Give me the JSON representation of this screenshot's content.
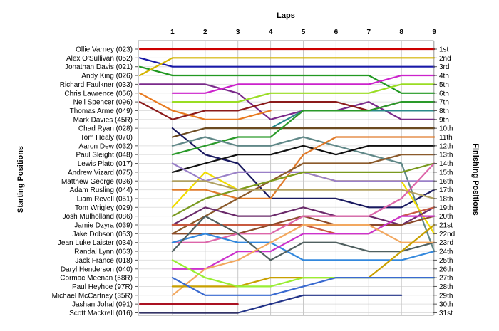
{
  "chart_data": {
    "type": "line",
    "title": "Laps",
    "ylabel": "Starting Positions",
    "y2label": "Finishing Positions",
    "x": [
      0,
      1,
      2,
      3,
      4,
      5,
      6,
      7,
      8,
      9
    ],
    "x_tick_labels": [
      "1",
      "2",
      "3",
      "4",
      "5",
      "6",
      "7",
      "8",
      "9"
    ],
    "ylim": [
      1,
      31
    ],
    "grid": true,
    "start_labels": [
      "Ollie Varney (023)",
      "Alex O'Sullivan (052)",
      "Jonathan Davis (021)",
      "Andy King (026)",
      "Richard Faulkner (033)",
      "Chris Lawrence (056)",
      "Neil Spencer (096)",
      "Thomas Arme (049)",
      "Mark Davies (45R)",
      "Chad Ryan (028)",
      "Tom Healy (070)",
      "Aaron Dew (032)",
      "Paul Sleight (048)",
      "Lewis Plato (017)",
      "Andrew Vizard (075)",
      "Matthew George (036)",
      "Adam Rusling (044)",
      "Liam Revell (051)",
      "Tom Wrigley (029)",
      "Josh Mulholland (086)",
      "Jamie Dzyra (039)",
      "Jake Dobson (053)",
      "Jean Luke Laister (034)",
      "Randal Lynn (063)",
      "Jack France (018)",
      "Daryl Henderson (040)",
      "Cormac Meenan (58R)",
      "Paul Heyhoe (97R)",
      "Michael McCartney (35R)",
      "Jashan Johal (091)",
      "Scott Mackrell (016)"
    ],
    "finish_labels": [
      "1st",
      "2nd",
      "3rd",
      "4th",
      "5th",
      "6th",
      "7th",
      "8th",
      "9th",
      "10th",
      "11th",
      "12th",
      "13th",
      "14th",
      "15th",
      "16th",
      "17th",
      "18th",
      "19th",
      "20th",
      "21st",
      "22nd",
      "23rd",
      "24th",
      "25th",
      "26th",
      "27th",
      "28th",
      "29th",
      "30th",
      "31st"
    ],
    "series": [
      {
        "color": "#cc0000",
        "values": [
          1,
          1,
          1,
          1,
          1,
          1,
          1,
          1,
          1,
          1
        ]
      },
      {
        "color": "#1a1aa8",
        "values": [
          2,
          3,
          3,
          3,
          3,
          3,
          3,
          3,
          3,
          3
        ]
      },
      {
        "color": "#229922",
        "values": [
          3,
          4,
          4,
          4,
          4,
          4,
          4,
          4,
          6,
          6
        ]
      },
      {
        "color": "#d4b400",
        "values": [
          4,
          2,
          2,
          2,
          2,
          2,
          2,
          2,
          2,
          2
        ]
      },
      {
        "color": "#7a2a8a",
        "values": [
          5,
          5,
          5,
          6,
          9,
          8,
          8,
          7,
          9,
          9
        ]
      },
      {
        "color": "#e87a20",
        "values": [
          6,
          8,
          9,
          9,
          8,
          null,
          null,
          null,
          null,
          null
        ]
      },
      {
        "color": "#8b1a1a",
        "values": [
          7,
          9,
          8,
          8,
          7,
          7,
          7,
          8,
          7,
          7
        ]
      },
      {
        "color": "#cc22cc",
        "values": [
          null,
          6,
          6,
          5,
          5,
          5,
          5,
          5,
          4,
          4
        ]
      },
      {
        "color": "#99dd22",
        "values": [
          null,
          7,
          7,
          7,
          6,
          6,
          6,
          6,
          5,
          5
        ]
      },
      {
        "color": "#2a8a8a",
        "values": [
          null,
          null,
          null,
          10,
          10,
          8,
          8,
          8,
          8,
          8
        ]
      },
      {
        "color": "#6b4a20",
        "values": [
          null,
          11,
          10,
          10,
          10,
          10,
          10,
          10,
          10,
          10
        ]
      },
      {
        "color": "#1a1a60",
        "values": [
          null,
          10,
          13,
          14,
          18,
          18,
          18,
          19,
          19,
          17
        ]
      },
      {
        "color": "#2a9a2a",
        "values": [
          null,
          13,
          12,
          11,
          11,
          8,
          8,
          8,
          7,
          7
        ]
      },
      {
        "color": "#608888",
        "values": [
          null,
          12,
          11,
          12,
          12,
          11,
          12,
          13,
          14,
          24
        ]
      },
      {
        "color": "#111111",
        "values": [
          null,
          15,
          14,
          13,
          13,
          12,
          13,
          12,
          12,
          12
        ]
      },
      {
        "color": "#e07a2a",
        "values": [
          null,
          17,
          17,
          18,
          18,
          13,
          11,
          11,
          11,
          11
        ]
      },
      {
        "color": "#f0dc00",
        "values": [
          null,
          19,
          15,
          17,
          16,
          15,
          16,
          16,
          16,
          22
        ]
      },
      {
        "color": "#9a80c8",
        "values": [
          null,
          14,
          16,
          15,
          15,
          15,
          16,
          16,
          16,
          16
        ]
      },
      {
        "color": "#8b5a2b",
        "values": [
          null,
          22,
          20,
          18,
          16,
          14,
          14,
          14,
          13,
          13
        ]
      },
      {
        "color": "#7a9a20",
        "values": [
          null,
          20,
          18,
          17,
          16,
          15,
          15,
          15,
          15,
          14
        ]
      },
      {
        "color": "#b0a060",
        "values": [
          null,
          16,
          16,
          17,
          17,
          17,
          17,
          17,
          17,
          18
        ]
      },
      {
        "color": "#6a2a6a",
        "values": [
          null,
          21,
          19,
          20,
          20,
          19,
          20,
          20,
          21,
          19
        ]
      },
      {
        "color": "#c85a40",
        "values": [
          null,
          21,
          21,
          21,
          21,
          21,
          22,
          22,
          20,
          19
        ]
      },
      {
        "color": "#8c4a2a",
        "values": [
          null,
          22,
          22,
          22,
          21,
          20,
          21,
          21,
          21,
          20
        ]
      },
      {
        "color": "#dd66aa",
        "values": [
          null,
          23,
          23,
          22,
          22,
          20,
          20,
          20,
          18,
          14
        ]
      },
      {
        "color": "#3388dd",
        "values": [
          null,
          23,
          22,
          23,
          23,
          25,
          25,
          25,
          25,
          24
        ]
      },
      {
        "color": "#cc33cc",
        "values": [
          null,
          26,
          26,
          24,
          24,
          22,
          22,
          22,
          20,
          20
        ]
      },
      {
        "color": "#506060",
        "values": [
          null,
          24,
          20,
          22,
          25,
          23,
          23,
          24,
          24,
          23
        ]
      },
      {
        "color": "#f2a860",
        "values": [
          null,
          29,
          26,
          25,
          23,
          21,
          21,
          21,
          23,
          23
        ]
      },
      {
        "color": "#c8a000",
        "values": [
          null,
          28,
          28,
          28,
          27,
          27,
          27,
          27,
          24,
          21
        ]
      },
      {
        "color": "#99ee33",
        "values": [
          null,
          25,
          27,
          28,
          28,
          27,
          27,
          27,
          27,
          27
        ]
      },
      {
        "color": "#3a6ad0",
        "values": [
          null,
          27,
          29,
          29,
          29,
          28,
          27,
          27,
          27,
          27
        ]
      },
      {
        "color": "#223388",
        "values": [
          null,
          31,
          31,
          31,
          30,
          29,
          29,
          29,
          29,
          null
        ]
      },
      {
        "color": "#333366",
        "values": [
          31,
          31,
          31,
          31,
          null,
          null,
          null,
          null,
          null,
          null
        ]
      },
      {
        "color": "#aa1122",
        "values": [
          30,
          30,
          30,
          30,
          null,
          null,
          null,
          null,
          null,
          null
        ]
      }
    ]
  }
}
